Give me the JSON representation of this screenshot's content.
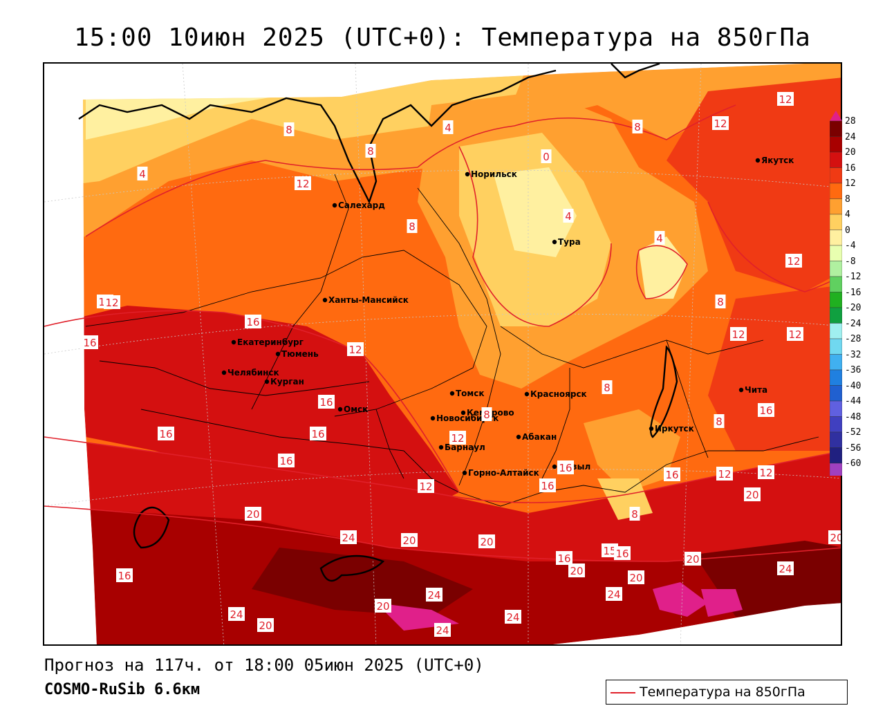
{
  "title": "15:00 10июн 2025 (UTC+0): Температура на 850гПа",
  "footer": {
    "forecast": "Прогноз на 117ч. от 18:00 05июн 2025 (UTC+0)",
    "model": "COSMO-RuSib 6.6км"
  },
  "legend": {
    "label": "Температура на 850гПа",
    "color": "#e0202a"
  },
  "colorbar": {
    "ticks": [
      "28",
      "24",
      "20",
      "16",
      "12",
      "8",
      "4",
      "0",
      "-4",
      "-8",
      "-12",
      "-16",
      "-20",
      "-24",
      "-28",
      "-32",
      "-36",
      "-40",
      "-44",
      "-48",
      "-52",
      "-56",
      "-60"
    ],
    "colors": [
      "#7a0000",
      "#a80000",
      "#d41010",
      "#f03a14",
      "#ff6a10",
      "#ffa030",
      "#ffd060",
      "#fff0a0",
      "#e8ffb0",
      "#b0f0a0",
      "#60d060",
      "#20b020",
      "#10a040",
      "#a0f0f0",
      "#70d8f0",
      "#40b0f0",
      "#2080e0",
      "#2060d0",
      "#6060e0",
      "#4040c0",
      "#3030a0",
      "#202080",
      "#a040c0"
    ],
    "top_arrow_color": "#e0208a",
    "bottom_arrow_color": "#a040c0"
  },
  "cities": [
    {
      "name": "Норильск"
    },
    {
      "name": "Якутск"
    },
    {
      "name": "Салехард"
    },
    {
      "name": "Тура"
    },
    {
      "name": "Ханты-Мансийск"
    },
    {
      "name": "Екатеринбург"
    },
    {
      "name": "Тюмень"
    },
    {
      "name": "Челябинск"
    },
    {
      "name": "Курган"
    },
    {
      "name": "Омск"
    },
    {
      "name": "Новосибирск"
    },
    {
      "name": "Томск"
    },
    {
      "name": "Кемерово"
    },
    {
      "name": "Красноярск"
    },
    {
      "name": "Барнаул"
    },
    {
      "name": "Абакан"
    },
    {
      "name": "Горно-Алтайск"
    },
    {
      "name": "Кызыл"
    },
    {
      "name": "Иркутск"
    },
    {
      "name": "Чита"
    }
  ],
  "isotherm_labels": [
    "12",
    "12",
    "8",
    "4",
    "8",
    "4",
    "8",
    "0",
    "8",
    "12",
    "4",
    "12",
    "8",
    "4",
    "12",
    "12",
    "12",
    "16",
    "16",
    "12",
    "16",
    "8",
    "8",
    "12",
    "16",
    "16",
    "16",
    "16",
    "12",
    "8",
    "12",
    "16",
    "12",
    "12",
    "16",
    "20",
    "16",
    "8",
    "20",
    "24",
    "20",
    "20",
    "15",
    "16",
    "16",
    "20",
    "20",
    "24",
    "24",
    "20",
    "24",
    "24",
    "20",
    "24",
    "24",
    "20",
    "20",
    "16"
  ]
}
